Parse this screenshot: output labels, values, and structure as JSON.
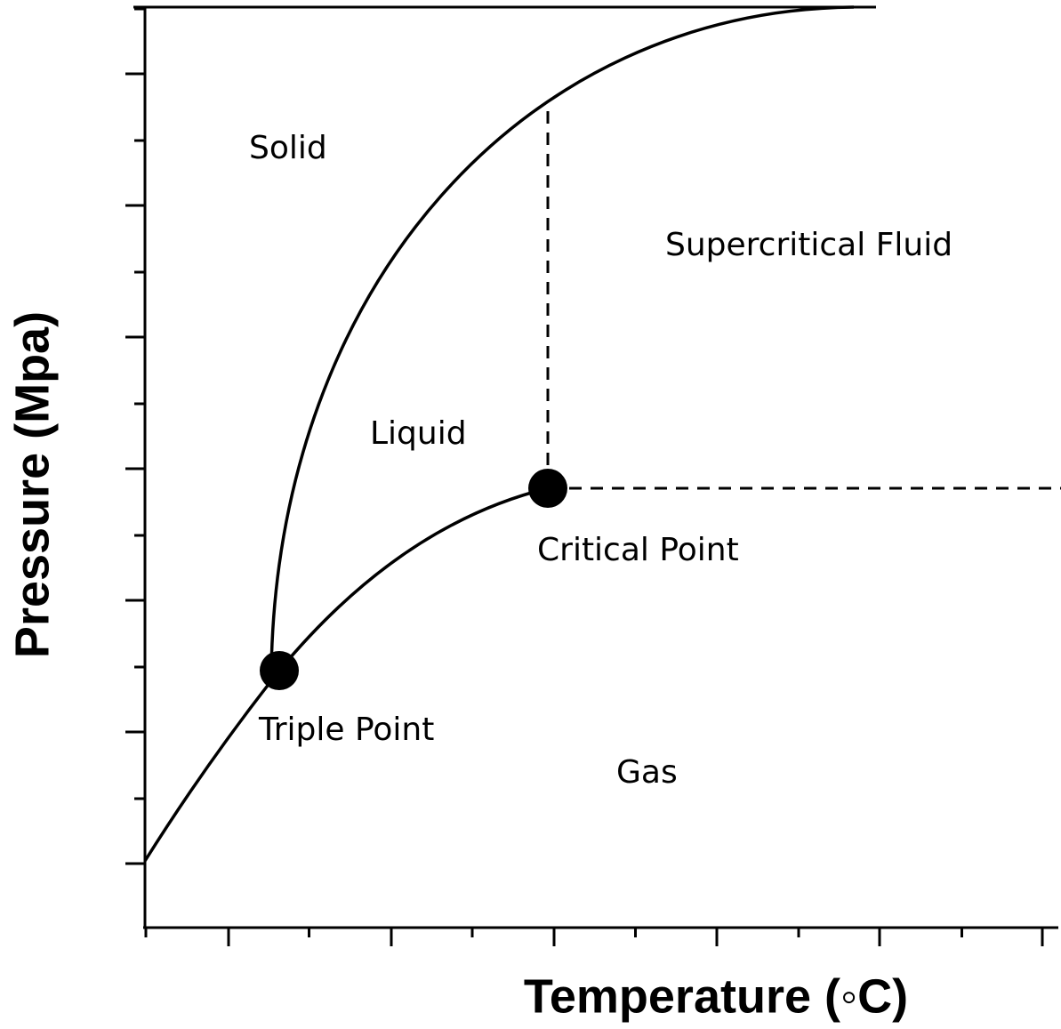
{
  "diagram": {
    "x_axis_label": "Temperature (◦C)",
    "y_axis_label": "Pressure (Mpa)",
    "regions": {
      "solid": "Solid",
      "liquid": "Liquid",
      "supercritical": "Supercritical Fluid",
      "gas": "Gas"
    },
    "points": {
      "critical": "Critical Point",
      "triple": "Triple Point"
    }
  }
}
